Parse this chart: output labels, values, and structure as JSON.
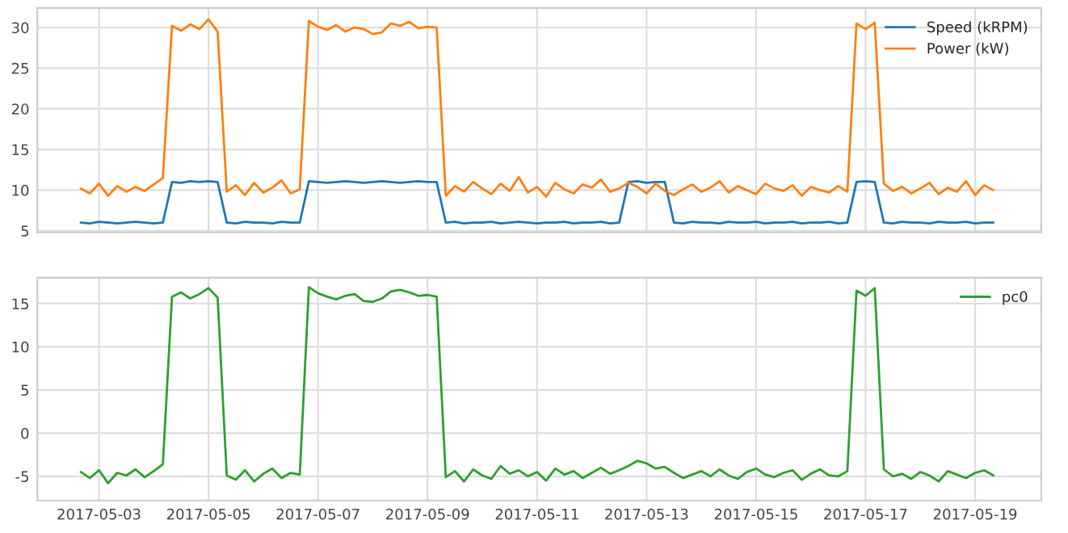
{
  "chart_data": [
    {
      "type": "line",
      "tick_labels": "y",
      "legend": "top right",
      "grid": true,
      "x": [
        "2017-05-02T16:00",
        "2017-05-02T20:00",
        "2017-05-03T00:00",
        "2017-05-03T04:00",
        "2017-05-03T08:00",
        "2017-05-03T12:00",
        "2017-05-03T16:00",
        "2017-05-03T20:00",
        "2017-05-04T00:00",
        "2017-05-04T04:00",
        "2017-05-04T08:00",
        "2017-05-04T12:00",
        "2017-05-04T16:00",
        "2017-05-04T20:00",
        "2017-05-05T00:00",
        "2017-05-05T04:00",
        "2017-05-05T08:00",
        "2017-05-05T12:00",
        "2017-05-05T16:00",
        "2017-05-05T20:00",
        "2017-05-06T00:00",
        "2017-05-06T04:00",
        "2017-05-06T08:00",
        "2017-05-06T12:00",
        "2017-05-06T16:00",
        "2017-05-06T20:00",
        "2017-05-07T00:00",
        "2017-05-07T04:00",
        "2017-05-07T08:00",
        "2017-05-07T12:00",
        "2017-05-07T16:00",
        "2017-05-07T20:00",
        "2017-05-08T00:00",
        "2017-05-08T04:00",
        "2017-05-08T08:00",
        "2017-05-08T12:00",
        "2017-05-08T16:00",
        "2017-05-08T20:00",
        "2017-05-09T00:00",
        "2017-05-09T04:00",
        "2017-05-09T08:00",
        "2017-05-09T12:00",
        "2017-05-09T16:00",
        "2017-05-09T20:00",
        "2017-05-10T00:00",
        "2017-05-10T04:00",
        "2017-05-10T08:00",
        "2017-05-10T12:00",
        "2017-05-10T16:00",
        "2017-05-10T20:00",
        "2017-05-11T00:00",
        "2017-05-11T04:00",
        "2017-05-11T08:00",
        "2017-05-11T12:00",
        "2017-05-11T16:00",
        "2017-05-11T20:00",
        "2017-05-12T00:00",
        "2017-05-12T04:00",
        "2017-05-12T08:00",
        "2017-05-12T12:00",
        "2017-05-12T16:00",
        "2017-05-12T20:00",
        "2017-05-13T00:00",
        "2017-05-13T04:00",
        "2017-05-13T08:00",
        "2017-05-13T12:00",
        "2017-05-13T16:00",
        "2017-05-13T20:00",
        "2017-05-14T00:00",
        "2017-05-14T04:00",
        "2017-05-14T08:00",
        "2017-05-14T12:00",
        "2017-05-14T16:00",
        "2017-05-14T20:00",
        "2017-05-15T00:00",
        "2017-05-15T04:00",
        "2017-05-15T08:00",
        "2017-05-15T12:00",
        "2017-05-15T16:00",
        "2017-05-15T20:00",
        "2017-05-16T00:00",
        "2017-05-16T04:00",
        "2017-05-16T08:00",
        "2017-05-16T12:00",
        "2017-05-16T16:00",
        "2017-05-16T20:00",
        "2017-05-17T00:00",
        "2017-05-17T04:00",
        "2017-05-17T08:00",
        "2017-05-17T12:00",
        "2017-05-17T16:00",
        "2017-05-17T20:00",
        "2017-05-18T00:00",
        "2017-05-18T04:00",
        "2017-05-18T08:00",
        "2017-05-18T12:00",
        "2017-05-18T16:00",
        "2017-05-18T20:00",
        "2017-05-19T00:00",
        "2017-05-19T04:00",
        "2017-05-19T08:00"
      ],
      "xlim": [
        "2017-05-01T21:00",
        "2017-05-20T05:00"
      ],
      "xticks": [
        "2017-05-03",
        "2017-05-05",
        "2017-05-07",
        "2017-05-09",
        "2017-05-11",
        "2017-05-13",
        "2017-05-15",
        "2017-05-17",
        "2017-05-19"
      ],
      "ylim": [
        4.8,
        32.4
      ],
      "yticks": [
        5,
        10,
        15,
        20,
        25,
        30
      ],
      "series": [
        {
          "name": "Speed (kRPM)",
          "color": "#1f77b4",
          "values": [
            6.0,
            5.9,
            6.1,
            6.0,
            5.9,
            6.0,
            6.1,
            6.0,
            5.9,
            6.0,
            11.0,
            10.9,
            11.1,
            11.0,
            11.1,
            11.0,
            6.0,
            5.9,
            6.1,
            6.0,
            6.0,
            5.9,
            6.1,
            6.0,
            6.0,
            11.1,
            11.0,
            10.9,
            11.0,
            11.1,
            11.0,
            10.9,
            11.0,
            11.1,
            11.0,
            10.9,
            11.0,
            11.1,
            11.0,
            11.0,
            6.0,
            6.1,
            5.9,
            6.0,
            6.0,
            6.1,
            5.9,
            6.0,
            6.1,
            6.0,
            5.9,
            6.0,
            6.0,
            6.1,
            5.9,
            6.0,
            6.0,
            6.1,
            5.9,
            6.0,
            11.0,
            11.1,
            10.9,
            11.0,
            11.0,
            6.0,
            5.9,
            6.1,
            6.0,
            6.0,
            5.9,
            6.1,
            6.0,
            6.0,
            6.1,
            5.9,
            6.0,
            6.0,
            6.1,
            5.9,
            6.0,
            6.0,
            6.1,
            5.9,
            6.0,
            11.0,
            11.1,
            11.0,
            6.0,
            5.9,
            6.1,
            6.0,
            6.0,
            5.9,
            6.1,
            6.0,
            6.0,
            6.1,
            5.9,
            6.0,
            6.0
          ]
        },
        {
          "name": "Power (kW)",
          "color": "#ff7f0e",
          "values": [
            10.2,
            9.6,
            10.8,
            9.3,
            10.5,
            9.8,
            10.4,
            9.9,
            10.7,
            11.5,
            30.2,
            29.6,
            30.4,
            29.8,
            31.0,
            29.5,
            9.8,
            10.6,
            9.4,
            10.9,
            9.7,
            10.3,
            11.2,
            9.6,
            10.1,
            30.8,
            30.1,
            29.7,
            30.3,
            29.5,
            30.0,
            29.8,
            29.2,
            29.4,
            30.5,
            30.2,
            30.7,
            29.9,
            30.1,
            30.0,
            9.3,
            10.5,
            9.8,
            11.0,
            10.2,
            9.5,
            10.8,
            9.9,
            11.6,
            9.7,
            10.4,
            9.2,
            10.9,
            10.1,
            9.6,
            10.7,
            10.3,
            11.3,
            9.8,
            10.2,
            10.9,
            10.4,
            9.6,
            10.8,
            9.9,
            9.4,
            10.1,
            10.7,
            9.8,
            10.3,
            11.1,
            9.7,
            10.5,
            10.0,
            9.5,
            10.8,
            10.2,
            9.9,
            10.6,
            9.3,
            10.4,
            10.0,
            9.7,
            10.5,
            9.8,
            30.5,
            29.8,
            30.6,
            10.8,
            9.9,
            10.4,
            9.6,
            10.2,
            10.9,
            9.5,
            10.3,
            9.8,
            11.1,
            9.4,
            10.6,
            10.0
          ]
        }
      ]
    },
    {
      "type": "line",
      "legend": "top right",
      "grid": true,
      "x": [
        "2017-05-02T16:00",
        "2017-05-02T20:00",
        "2017-05-03T00:00",
        "2017-05-03T04:00",
        "2017-05-03T08:00",
        "2017-05-03T12:00",
        "2017-05-03T16:00",
        "2017-05-03T20:00",
        "2017-05-04T00:00",
        "2017-05-04T04:00",
        "2017-05-04T08:00",
        "2017-05-04T12:00",
        "2017-05-04T16:00",
        "2017-05-04T20:00",
        "2017-05-05T00:00",
        "2017-05-05T04:00",
        "2017-05-05T08:00",
        "2017-05-05T12:00",
        "2017-05-05T16:00",
        "2017-05-05T20:00",
        "2017-05-06T00:00",
        "2017-05-06T04:00",
        "2017-05-06T08:00",
        "2017-05-06T12:00",
        "2017-05-06T16:00",
        "2017-05-06T20:00",
        "2017-05-07T00:00",
        "2017-05-07T04:00",
        "2017-05-07T08:00",
        "2017-05-07T12:00",
        "2017-05-07T16:00",
        "2017-05-07T20:00",
        "2017-05-08T00:00",
        "2017-05-08T04:00",
        "2017-05-08T08:00",
        "2017-05-08T12:00",
        "2017-05-08T16:00",
        "2017-05-08T20:00",
        "2017-05-09T00:00",
        "2017-05-09T04:00",
        "2017-05-09T08:00",
        "2017-05-09T12:00",
        "2017-05-09T16:00",
        "2017-05-09T20:00",
        "2017-05-10T00:00",
        "2017-05-10T04:00",
        "2017-05-10T08:00",
        "2017-05-10T12:00",
        "2017-05-10T16:00",
        "2017-05-10T20:00",
        "2017-05-11T00:00",
        "2017-05-11T04:00",
        "2017-05-11T08:00",
        "2017-05-11T12:00",
        "2017-05-11T16:00",
        "2017-05-11T20:00",
        "2017-05-12T00:00",
        "2017-05-12T04:00",
        "2017-05-12T08:00",
        "2017-05-12T12:00",
        "2017-05-12T16:00",
        "2017-05-12T20:00",
        "2017-05-13T00:00",
        "2017-05-13T04:00",
        "2017-05-13T08:00",
        "2017-05-13T12:00",
        "2017-05-13T16:00",
        "2017-05-13T20:00",
        "2017-05-14T00:00",
        "2017-05-14T04:00",
        "2017-05-14T08:00",
        "2017-05-14T12:00",
        "2017-05-14T16:00",
        "2017-05-14T20:00",
        "2017-05-15T00:00",
        "2017-05-15T04:00",
        "2017-05-15T08:00",
        "2017-05-15T12:00",
        "2017-05-15T16:00",
        "2017-05-15T20:00",
        "2017-05-16T00:00",
        "2017-05-16T04:00",
        "2017-05-16T08:00",
        "2017-05-16T12:00",
        "2017-05-16T16:00",
        "2017-05-16T20:00",
        "2017-05-17T00:00",
        "2017-05-17T04:00",
        "2017-05-17T08:00",
        "2017-05-17T12:00",
        "2017-05-17T16:00",
        "2017-05-17T20:00",
        "2017-05-18T00:00",
        "2017-05-18T04:00",
        "2017-05-18T08:00",
        "2017-05-18T12:00",
        "2017-05-18T16:00",
        "2017-05-18T20:00",
        "2017-05-19T00:00",
        "2017-05-19T04:00",
        "2017-05-19T08:00"
      ],
      "xlim": [
        "2017-05-01T21:00",
        "2017-05-20T05:00"
      ],
      "xticks": [
        "2017-05-03",
        "2017-05-05",
        "2017-05-07",
        "2017-05-09",
        "2017-05-11",
        "2017-05-13",
        "2017-05-15",
        "2017-05-17",
        "2017-05-19"
      ],
      "ylim": [
        -7.8,
        18.0
      ],
      "yticks": [
        -5,
        0,
        5,
        10,
        15
      ],
      "series": [
        {
          "name": "pc0",
          "color": "#2ca02c",
          "values": [
            -4.5,
            -5.2,
            -4.3,
            -5.8,
            -4.6,
            -4.9,
            -4.2,
            -5.1,
            -4.4,
            -3.6,
            15.8,
            16.3,
            15.6,
            16.1,
            16.8,
            15.7,
            -4.9,
            -5.4,
            -4.3,
            -5.6,
            -4.7,
            -4.1,
            -5.2,
            -4.6,
            -4.8,
            16.9,
            16.2,
            15.8,
            15.5,
            15.9,
            16.1,
            15.3,
            15.2,
            15.6,
            16.4,
            16.6,
            16.3,
            15.9,
            16.0,
            15.8,
            -5.1,
            -4.4,
            -5.6,
            -4.2,
            -4.9,
            -5.3,
            -3.8,
            -4.7,
            -4.3,
            -5.0,
            -4.5,
            -5.5,
            -4.1,
            -4.8,
            -4.4,
            -5.2,
            -4.6,
            -4.0,
            -4.7,
            -4.3,
            -3.8,
            -3.2,
            -3.5,
            -4.1,
            -3.9,
            -4.6,
            -5.2,
            -4.8,
            -4.4,
            -5.0,
            -4.2,
            -4.9,
            -5.3,
            -4.5,
            -4.1,
            -4.8,
            -5.1,
            -4.6,
            -4.3,
            -5.4,
            -4.7,
            -4.2,
            -4.9,
            -5.0,
            -4.4,
            16.5,
            15.9,
            16.8,
            -4.2,
            -5.0,
            -4.7,
            -5.3,
            -4.5,
            -4.9,
            -5.6,
            -4.4,
            -4.8,
            -5.2,
            -4.6,
            -4.3,
            -4.9
          ]
        }
      ]
    }
  ]
}
